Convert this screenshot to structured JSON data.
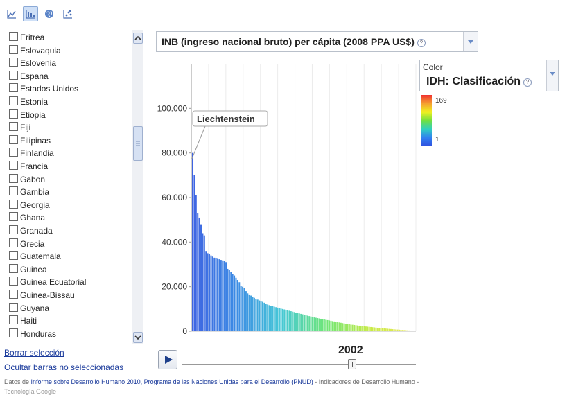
{
  "toolbar": {
    "tools": [
      {
        "icon": "line-chart-icon",
        "active": false
      },
      {
        "icon": "bar-chart-icon",
        "active": true
      },
      {
        "icon": "globe-icon",
        "active": false
      },
      {
        "icon": "scatter-chart-icon",
        "active": false
      }
    ]
  },
  "country_list": {
    "items": [
      "Eritrea",
      "Eslovaquia",
      "Eslovenia",
      "Espana",
      "Estados Unidos",
      "Estonia",
      "Etiopia",
      "Fiji",
      "Filipinas",
      "Finlandia",
      "Francia",
      "Gabon",
      "Gambia",
      "Georgia",
      "Ghana",
      "Granada",
      "Grecia",
      "Guatemala",
      "Guinea",
      "Guinea Ecuatorial",
      "Guinea-Bissau",
      "Guyana",
      "Haiti",
      "Honduras"
    ]
  },
  "links": {
    "clear": "Borrar selección",
    "hide": "Ocultar barras no seleccionadas"
  },
  "metric_selector": {
    "label": "INB (ingreso nacional bruto) per cápita (2008 PPA US$)"
  },
  "color_selector": {
    "small_label": "Color",
    "value": "IDH: Clasificación",
    "max": "169",
    "min": "1"
  },
  "timeline": {
    "year": "2002"
  },
  "footer": {
    "prefix": "Datos de ",
    "link": "Informe sobre Desarrollo Humano 2010, Programa de las Naciones Unidas para el Desarrollo (PNUD)",
    "suffix": " - Indicadores de Desarrollo Humano -",
    "line2": "Tecnología Google"
  },
  "colors": {
    "accent": "#1a3a9b",
    "bar_high": "#3a6fe0",
    "bar_low": "#e8e840"
  },
  "chart_data": {
    "type": "bar",
    "ylim": [
      0,
      120000
    ],
    "yticks": [
      "0",
      "20.000",
      "40.000",
      "60.000",
      "80.000",
      "100.000"
    ],
    "ytick_values": [
      0,
      20000,
      40000,
      60000,
      80000,
      100000
    ],
    "highlight": {
      "label": "Liechtenstein",
      "value": 80000
    },
    "color_scale": {
      "name": "IDH: Clasificación",
      "min": 1,
      "max": 169
    },
    "values": [
      80000,
      70000,
      61000,
      53000,
      51000,
      48000,
      44000,
      43000,
      36000,
      35000,
      34500,
      34000,
      33500,
      33000,
      32800,
      32500,
      32300,
      32000,
      31800,
      31500,
      31000,
      28000,
      27500,
      26500,
      25500,
      25000,
      24000,
      23000,
      22000,
      20500,
      20000,
      19500,
      18000,
      17000,
      16500,
      16000,
      15500,
      15000,
      14500,
      14200,
      13800,
      13500,
      13200,
      12800,
      12400,
      12000,
      11700,
      11500,
      11200,
      11000,
      10800,
      10600,
      10400,
      10200,
      10000,
      9800,
      9600,
      9400,
      9200,
      9000,
      8800,
      8600,
      8400,
      8200,
      8000,
      7800,
      7600,
      7400,
      7200,
      7000,
      6800,
      6600,
      6400,
      6200,
      6050,
      5900,
      5750,
      5600,
      5450,
      5300,
      5150,
      5000,
      4850,
      4700,
      4550,
      4400,
      4250,
      4100,
      3950,
      3800,
      3650,
      3500,
      3350,
      3200,
      3100,
      3000,
      2900,
      2800,
      2700,
      2600,
      2500,
      2400,
      2300,
      2200,
      2120,
      2040,
      1960,
      1880,
      1800,
      1720,
      1640,
      1560,
      1480,
      1400,
      1330,
      1260,
      1190,
      1120,
      1050,
      980,
      920,
      860,
      800,
      740,
      680,
      620,
      560,
      500,
      450,
      400,
      350,
      300,
      250,
      200
    ]
  }
}
